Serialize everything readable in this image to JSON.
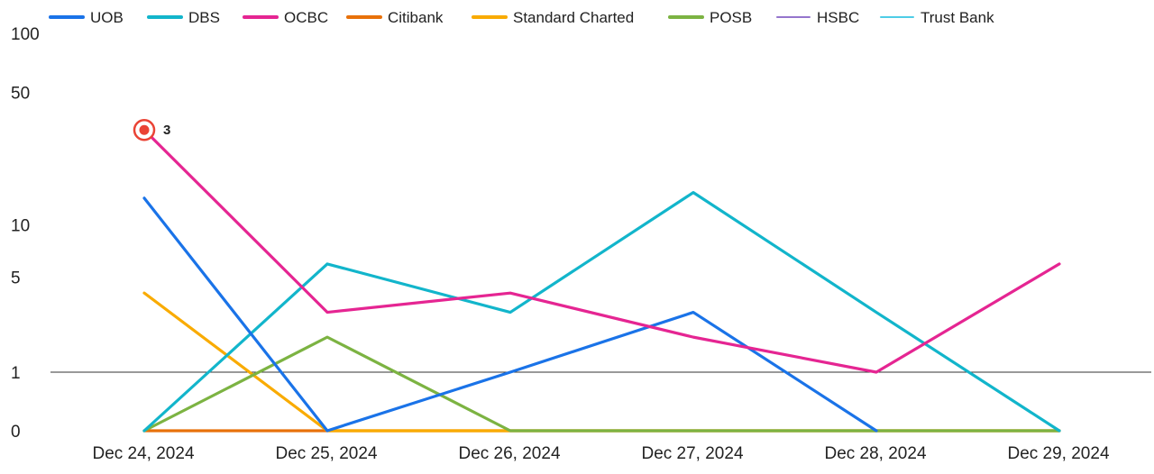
{
  "chart_data": {
    "type": "line",
    "title": "",
    "xlabel": "",
    "ylabel": "",
    "y_scale": "log1p",
    "ylim": [
      0,
      100
    ],
    "y_ticks": [
      "0",
      "1",
      "5",
      "10",
      "50",
      "100"
    ],
    "x_ticks": [
      "Dec 24, 2024",
      "Dec 25, 2024",
      "Dec 26, 2024",
      "Dec 27, 2024",
      "Dec 28, 2024",
      "Dec 29, 2024"
    ],
    "legend_position": "top",
    "grid": false,
    "series": [
      {
        "name": "UOB",
        "color": "#1a73e8",
        "values": [
          14,
          0,
          1,
          3,
          0,
          null
        ]
      },
      {
        "name": "DBS",
        "color": "#12b5cb",
        "values": [
          0,
          6,
          3,
          15,
          3,
          0
        ]
      },
      {
        "name": "OCBC",
        "color": "#e52592",
        "values": [
          32,
          3,
          4,
          2,
          1,
          6
        ]
      },
      {
        "name": "Citibank",
        "color": "#e8710a",
        "values": [
          0,
          0,
          0,
          0,
          0,
          0
        ]
      },
      {
        "name": "Standard Charted",
        "color": "#f9ab00",
        "values": [
          4,
          0,
          0,
          0,
          0,
          0
        ]
      },
      {
        "name": "POSB",
        "color": "#7cb342",
        "values": [
          0,
          2,
          0,
          0,
          0,
          0
        ]
      },
      {
        "name": "HSBC",
        "color": "#9575cd",
        "values": [
          0,
          0,
          0,
          0,
          0,
          0
        ]
      },
      {
        "name": "Trust Bank",
        "color": "#4ecde6",
        "values": [
          0,
          0,
          0,
          0,
          0,
          0
        ]
      }
    ],
    "annotation": {
      "series": "OCBC",
      "index": 0,
      "label": "3",
      "color": "#ea4335"
    }
  }
}
